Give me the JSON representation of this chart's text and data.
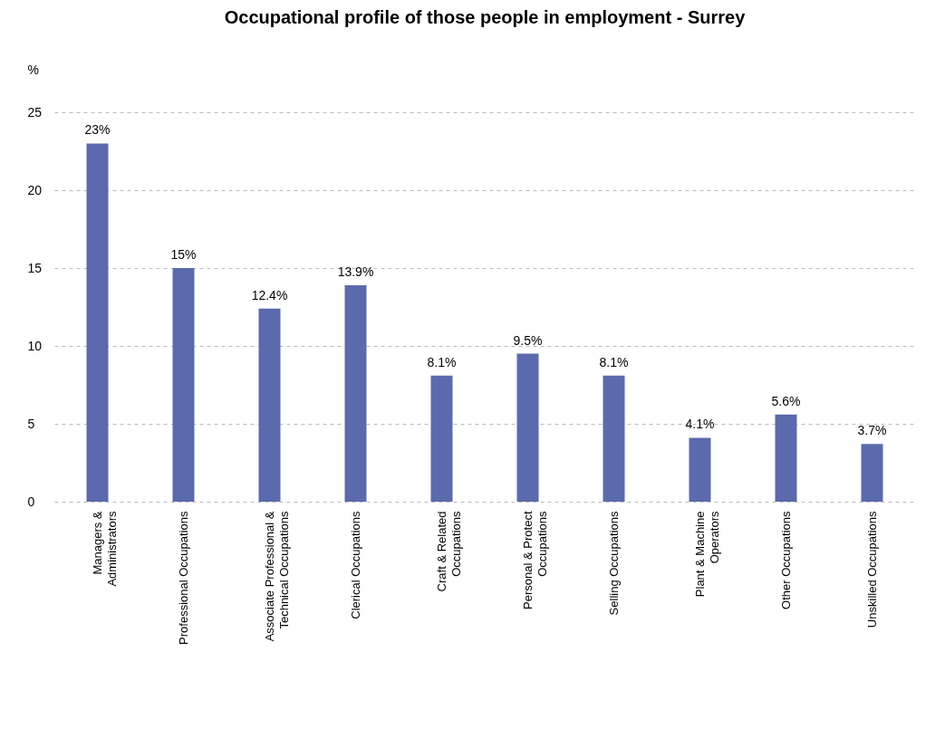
{
  "chart_data": {
    "type": "bar",
    "title": "Occupational profile of those people in employment - Surrey",
    "ylabel": "%",
    "categories": [
      "Managers & Administrators",
      "Professional Occupations",
      "Associate Professional & Technical Occupations",
      "Clerical Occupations",
      "Craft & Related Occupations",
      "Personal & Protect Occupations",
      "Selling Occupations",
      "Plant & Machine Operators",
      "Other Occupations",
      "Unskilled Occupations"
    ],
    "values": [
      23,
      15,
      12.4,
      13.9,
      8.1,
      9.5,
      8.1,
      4.1,
      5.6,
      3.7
    ],
    "value_labels": [
      "23%",
      "15%",
      "12.4%",
      "13.9%",
      "8.1%",
      "9.5%",
      "8.1%",
      "4.1%",
      "5.6%",
      "3.7%"
    ],
    "color": "#5a6aad",
    "ylim": [
      0,
      25
    ],
    "yticks": [
      0,
      5,
      10,
      15,
      20,
      25
    ],
    "grid": "y"
  }
}
